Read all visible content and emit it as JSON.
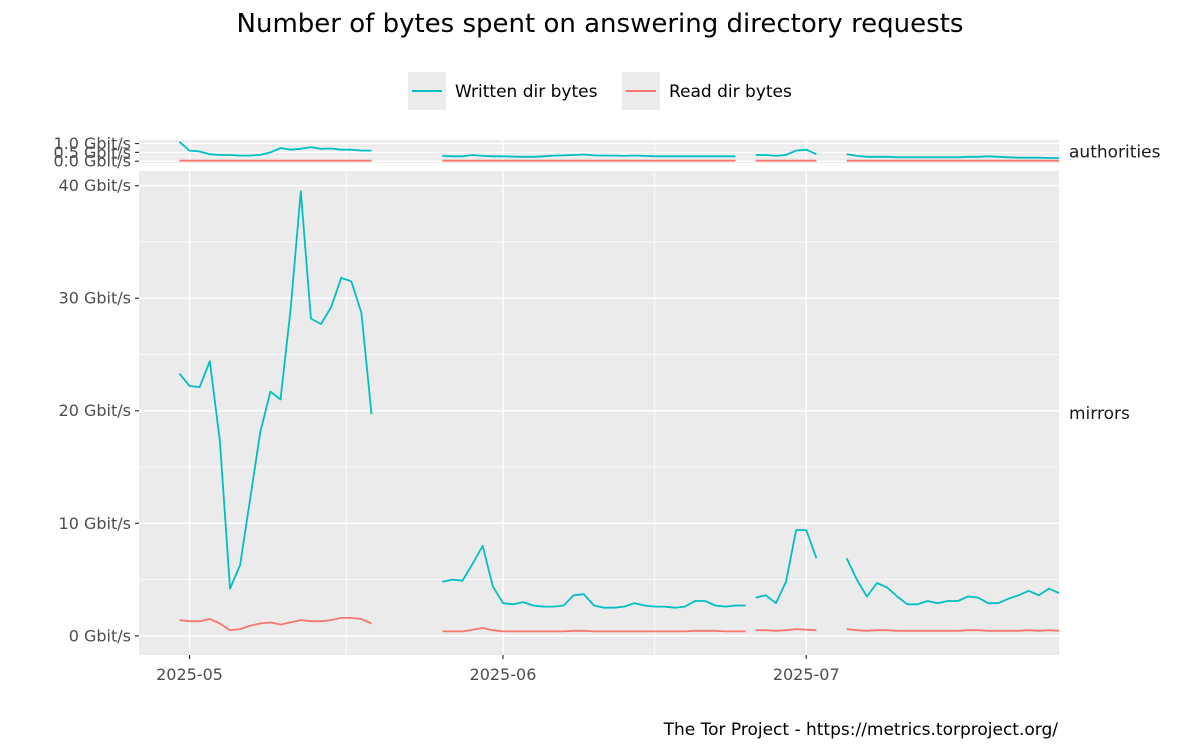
{
  "chart_data": {
    "type": "line",
    "title": "Number of bytes spent on answering directory requests",
    "caption": "The Tor Project - https://metrics.torproject.org/",
    "xlabel": "",
    "ylabel": "",
    "x_range": [
      "2025-04-26",
      "2025-07-26"
    ],
    "x_ticks": [
      {
        "date": "2025-05-01",
        "label": "2025-05"
      },
      {
        "date": "2025-06-01",
        "label": "2025-06"
      },
      {
        "date": "2025-07-01",
        "label": "2025-07"
      }
    ],
    "grid": true,
    "legend": {
      "placement": "top",
      "entries": [
        {
          "name": "Written dir bytes",
          "color": "#00BFC4"
        },
        {
          "name": "Read dir bytes",
          "color": "#F8766D"
        }
      ]
    },
    "panels": [
      {
        "name": "authorities",
        "ylim": [
          -0.1,
          1.2
        ],
        "y_ticks": [
          {
            "value": 0.0,
            "label": "0.0 Gbit/s"
          },
          {
            "value": 0.5,
            "label": "0.5 Gbit/s"
          },
          {
            "value": 1.0,
            "label": "1.0 Gbit/s"
          }
        ],
        "series": [
          {
            "name": "Written dir bytes",
            "color": "#00BFC4",
            "segments": [
              {
                "start": "2025-04-30",
                "values": [
                  1.1,
                  0.6,
                  0.55,
                  0.4,
                  0.35,
                  0.35,
                  0.32,
                  0.32,
                  0.36,
                  0.5,
                  0.75,
                  0.65,
                  0.7,
                  0.8,
                  0.7,
                  0.72,
                  0.65,
                  0.65,
                  0.6,
                  0.6
                ]
              },
              {
                "start": "2025-05-26",
                "values": [
                  0.3,
                  0.28,
                  0.28,
                  0.35,
                  0.3,
                  0.28,
                  0.28,
                  0.26,
                  0.25,
                  0.25,
                  0.28,
                  0.32,
                  0.33,
                  0.35,
                  0.38,
                  0.33,
                  0.32,
                  0.32,
                  0.3,
                  0.32,
                  0.3,
                  0.28,
                  0.28,
                  0.28,
                  0.28,
                  0.28,
                  0.28,
                  0.28,
                  0.28,
                  0.28
                ]
              },
              {
                "start": "2025-06-26",
                "values": [
                  0.35,
                  0.35,
                  0.3,
                  0.35,
                  0.6,
                  0.65,
                  0.4
                ]
              },
              {
                "start": "2025-07-05",
                "values": [
                  0.4,
                  0.3,
                  0.25,
                  0.25,
                  0.25,
                  0.22,
                  0.22,
                  0.22,
                  0.22,
                  0.22,
                  0.22,
                  0.22,
                  0.25,
                  0.25,
                  0.28,
                  0.25,
                  0.22,
                  0.2,
                  0.2,
                  0.2,
                  0.18,
                  0.18
                ]
              }
            ]
          },
          {
            "name": "Read dir bytes",
            "color": "#F8766D",
            "segments": [
              {
                "start": "2025-04-30",
                "values": [
                  0.03,
                  0.03,
                  0.03,
                  0.03,
                  0.03,
                  0.03,
                  0.03,
                  0.03,
                  0.03,
                  0.03,
                  0.03,
                  0.03,
                  0.03,
                  0.03,
                  0.03,
                  0.03,
                  0.03,
                  0.03,
                  0.03,
                  0.03
                ]
              },
              {
                "start": "2025-05-26",
                "values": [
                  0.03,
                  0.03,
                  0.03,
                  0.03,
                  0.03,
                  0.03,
                  0.03,
                  0.03,
                  0.03,
                  0.03,
                  0.03,
                  0.03,
                  0.03,
                  0.03,
                  0.03,
                  0.03,
                  0.03,
                  0.03,
                  0.03,
                  0.03,
                  0.03,
                  0.03,
                  0.03,
                  0.03,
                  0.03,
                  0.03,
                  0.03,
                  0.03,
                  0.03,
                  0.03
                ]
              },
              {
                "start": "2025-06-26",
                "values": [
                  0.03,
                  0.03,
                  0.03,
                  0.03,
                  0.03,
                  0.03,
                  0.03
                ]
              },
              {
                "start": "2025-07-05",
                "values": [
                  0.03,
                  0.03,
                  0.03,
                  0.03,
                  0.03,
                  0.03,
                  0.03,
                  0.03,
                  0.03,
                  0.03,
                  0.03,
                  0.03,
                  0.03,
                  0.03,
                  0.03,
                  0.03,
                  0.03,
                  0.03,
                  0.03,
                  0.03,
                  0.03,
                  0.03
                ]
              }
            ]
          }
        ]
      },
      {
        "name": "mirrors",
        "ylim": [
          -1.7,
          41.3
        ],
        "y_ticks": [
          {
            "value": 0,
            "label": "0 Gbit/s"
          },
          {
            "value": 10,
            "label": "10 Gbit/s"
          },
          {
            "value": 20,
            "label": "20 Gbit/s"
          },
          {
            "value": 30,
            "label": "30 Gbit/s"
          },
          {
            "value": 40,
            "label": "40 Gbit/s"
          }
        ],
        "series": [
          {
            "name": "Written dir bytes",
            "color": "#00BFC4",
            "segments": [
              {
                "start": "2025-04-30",
                "values": [
                  23.3,
                  22.2,
                  22.1,
                  24.4,
                  17.3,
                  4.2,
                  6.3,
                  12.2,
                  18.1,
                  21.7,
                  21.0,
                  29.0,
                  39.5,
                  28.2,
                  27.7,
                  29.2,
                  31.8,
                  31.5,
                  28.7,
                  19.7
                ]
              },
              {
                "start": "2025-05-26",
                "values": [
                  4.8,
                  5.0,
                  4.9,
                  6.4,
                  8.0,
                  4.4,
                  2.9,
                  2.8,
                  3.0,
                  2.7,
                  2.6,
                  2.6,
                  2.7,
                  3.6,
                  3.7,
                  2.7,
                  2.5,
                  2.5,
                  2.6,
                  2.9,
                  2.7,
                  2.6,
                  2.6,
                  2.5,
                  2.6,
                  3.1,
                  3.1,
                  2.7,
                  2.6,
                  2.7,
                  2.7
                ]
              },
              {
                "start": "2025-06-26",
                "values": [
                  3.4,
                  3.6,
                  2.9,
                  4.8,
                  9.4,
                  9.4,
                  6.9
                ]
              },
              {
                "start": "2025-07-05",
                "values": [
                  6.9,
                  5.0,
                  3.5,
                  4.7,
                  4.3,
                  3.5,
                  2.8,
                  2.8,
                  3.1,
                  2.9,
                  3.1,
                  3.1,
                  3.5,
                  3.4,
                  2.9,
                  2.9,
                  3.3,
                  3.6,
                  4.0,
                  3.6,
                  4.2,
                  3.8
                ]
              }
            ]
          },
          {
            "name": "Read dir bytes",
            "color": "#F8766D",
            "segments": [
              {
                "start": "2025-04-30",
                "values": [
                  1.4,
                  1.3,
                  1.3,
                  1.5,
                  1.1,
                  0.5,
                  0.6,
                  0.9,
                  1.1,
                  1.2,
                  1.0,
                  1.2,
                  1.4,
                  1.3,
                  1.3,
                  1.4,
                  1.6,
                  1.6,
                  1.5,
                  1.1
                ]
              },
              {
                "start": "2025-05-26",
                "values": [
                  0.4,
                  0.4,
                  0.4,
                  0.55,
                  0.7,
                  0.5,
                  0.4,
                  0.4,
                  0.4,
                  0.4,
                  0.4,
                  0.4,
                  0.4,
                  0.45,
                  0.45,
                  0.4,
                  0.4,
                  0.4,
                  0.4,
                  0.4,
                  0.4,
                  0.4,
                  0.4,
                  0.4,
                  0.4,
                  0.45,
                  0.45,
                  0.45,
                  0.4,
                  0.4,
                  0.4
                ]
              },
              {
                "start": "2025-06-26",
                "values": [
                  0.5,
                  0.5,
                  0.45,
                  0.5,
                  0.6,
                  0.55,
                  0.5
                ]
              },
              {
                "start": "2025-07-05",
                "values": [
                  0.6,
                  0.5,
                  0.45,
                  0.5,
                  0.5,
                  0.45,
                  0.45,
                  0.45,
                  0.45,
                  0.45,
                  0.45,
                  0.45,
                  0.5,
                  0.5,
                  0.45,
                  0.45,
                  0.45,
                  0.45,
                  0.5,
                  0.45,
                  0.5,
                  0.45
                ]
              }
            ]
          }
        ]
      }
    ]
  }
}
